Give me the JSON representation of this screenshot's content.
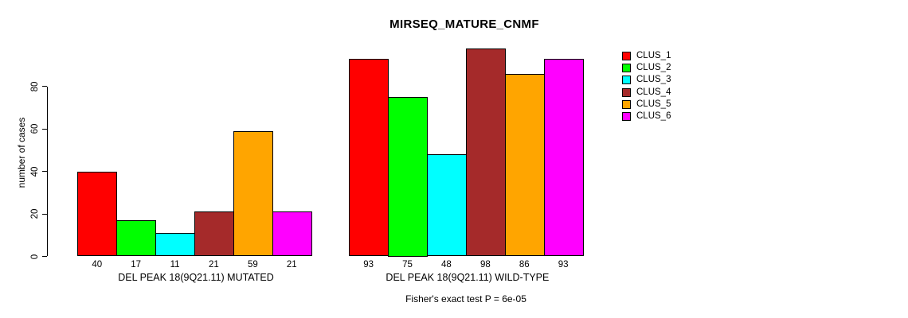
{
  "chart_data": {
    "type": "bar",
    "title": "MIRSEQ_MATURE_CNMF",
    "ylabel": "number of cases",
    "xlabel": "",
    "ylim": [
      0,
      80
    ],
    "yticks": [
      0,
      20,
      40,
      60,
      80
    ],
    "grid": false,
    "legend_position": "right",
    "legend": [
      "CLUS_1",
      "CLUS_2",
      "CLUS_3",
      "CLUS_4",
      "CLUS_5",
      "CLUS_6"
    ],
    "series_colors": [
      "#FF0000",
      "#00FF00",
      "#00FFFF",
      "#A52A2A",
      "#FFA500",
      "#FF00FF"
    ],
    "groups": [
      {
        "label": "DEL PEAK 18(9Q21.11) MUTATED",
        "values": [
          40,
          17,
          11,
          21,
          59,
          21
        ]
      },
      {
        "label": "DEL PEAK 18(9Q21.11) WILD-TYPE",
        "values": [
          93,
          75,
          48,
          98,
          86,
          93
        ]
      }
    ],
    "caption": "Fisher's exact test P = 6e-05"
  }
}
